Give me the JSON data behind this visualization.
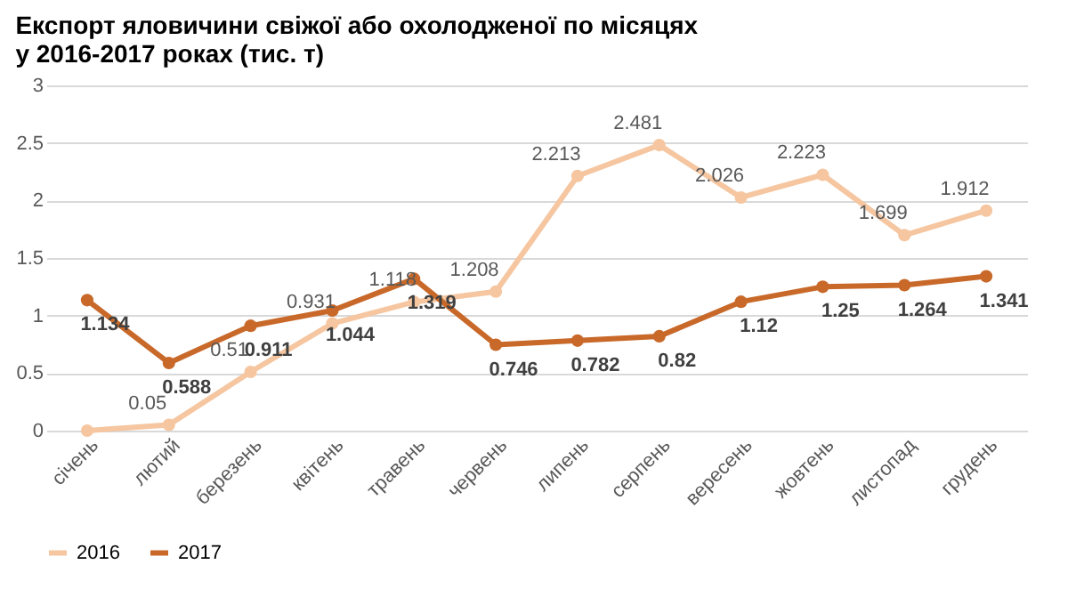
{
  "chart_data": {
    "type": "line",
    "title": "Експорт яловичини свіжої або охолодженої по місяцях\nу 2016-2017 роках (тис. т)",
    "categories": [
      "січень",
      "лютий",
      "березень",
      "квітень",
      "травень",
      "червень",
      "липень",
      "серпень",
      "вересень",
      "жовтень",
      "листопад",
      "грудень"
    ],
    "series": [
      {
        "name": "2016",
        "color": "#f5c6a0",
        "values": [
          0,
          0.05,
          0.51,
          0.931,
          1.118,
          1.208,
          2.213,
          2.481,
          2.026,
          2.223,
          1.699,
          1.912
        ],
        "value_labels": [
          null,
          "0.05",
          "0.51",
          "0.931",
          "1.118",
          "1.208",
          "2.213",
          "2.481",
          "2.026",
          "2.223",
          "1.699",
          "1.912"
        ]
      },
      {
        "name": "2017",
        "color": "#c8692a",
        "values": [
          1.134,
          0.588,
          0.911,
          1.044,
          1.319,
          0.746,
          0.782,
          0.82,
          1.12,
          1.25,
          1.264,
          1.341
        ],
        "value_labels": [
          "1.134",
          "0.588",
          "0.911",
          "1.044",
          "1.319",
          "0.746",
          "0.782",
          "0.82",
          "1.12",
          "1.25",
          "1.264",
          "1.341"
        ]
      }
    ],
    "ylim": [
      0,
      3
    ],
    "yticks": [
      0,
      0.5,
      1,
      1.5,
      2,
      2.5,
      3
    ],
    "grid": "y",
    "legend": "bottom",
    "marker": "circle",
    "line_style": "solid"
  }
}
